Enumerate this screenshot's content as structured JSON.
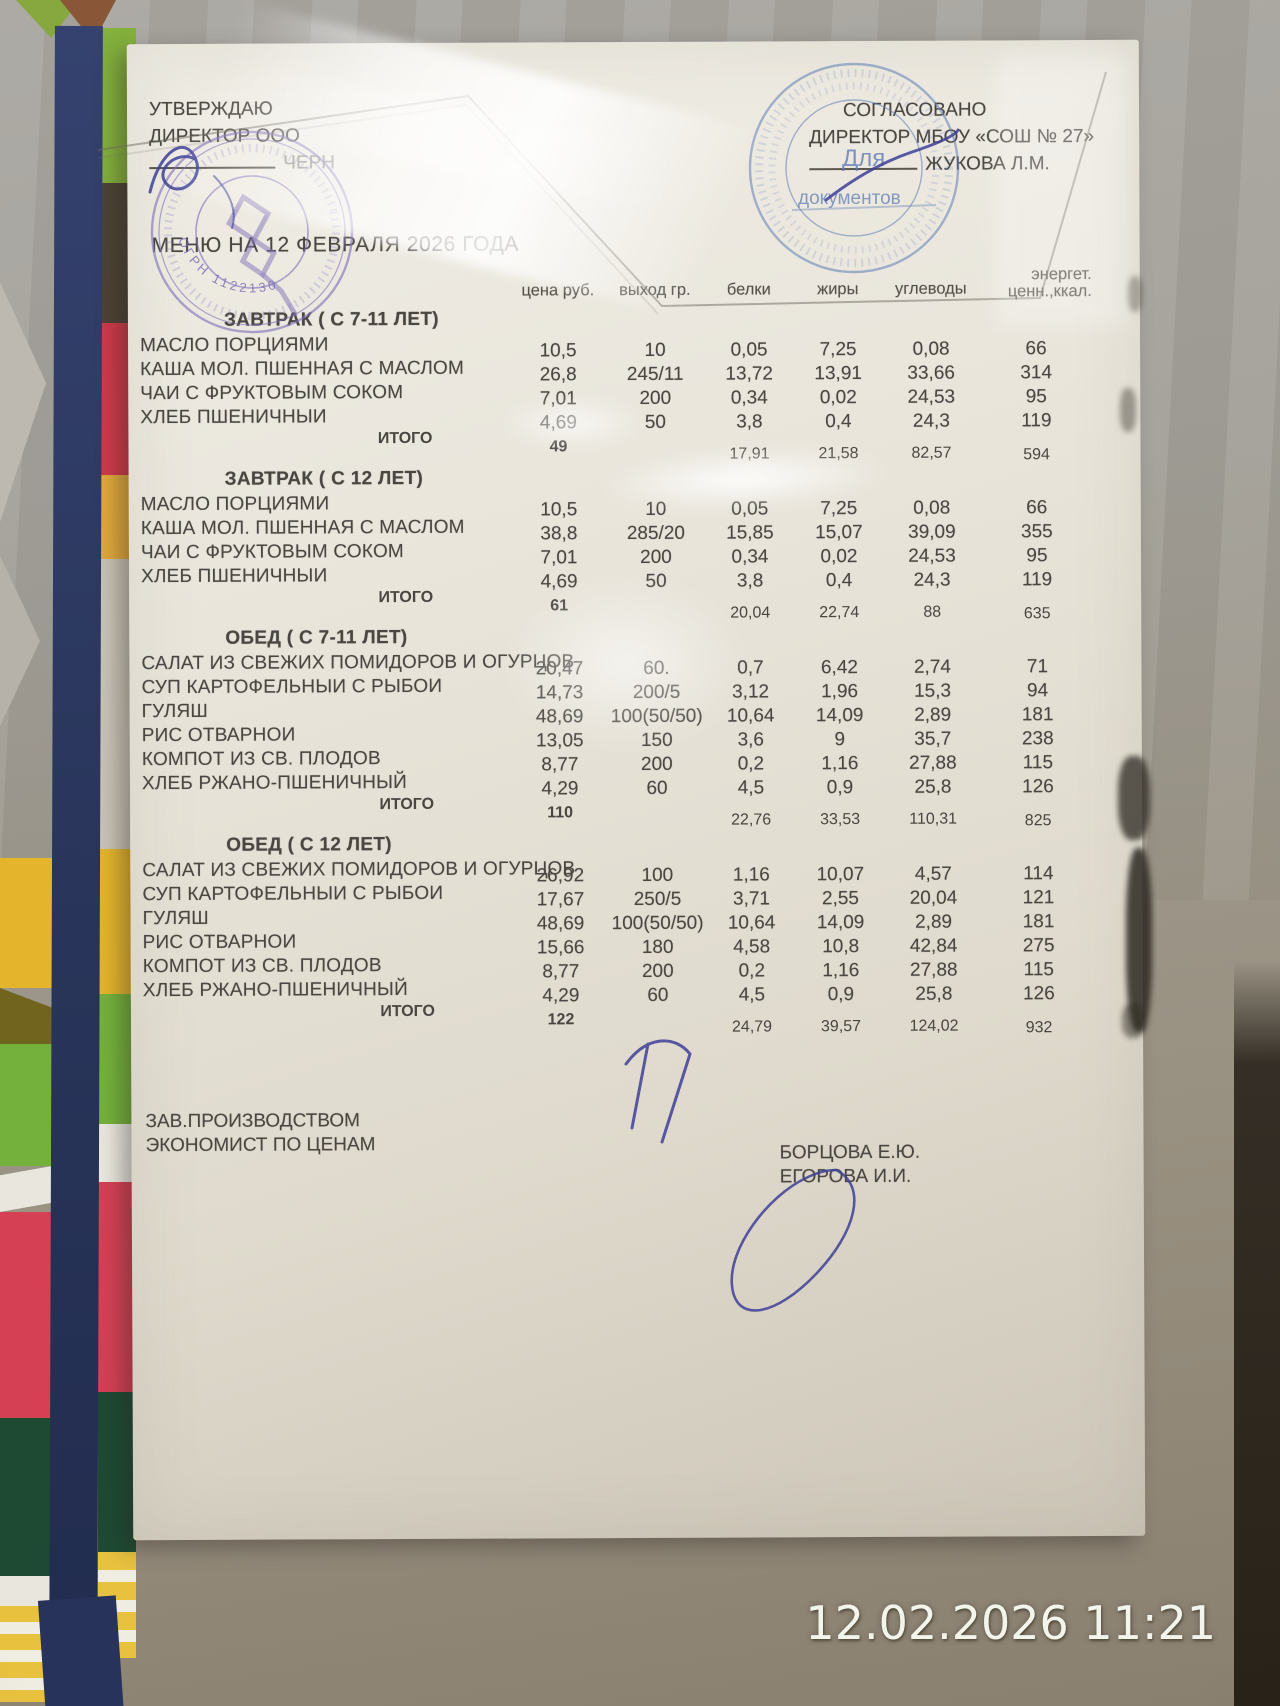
{
  "photo": {
    "camera_timestamp": "12.02.2026 11:21"
  },
  "doc": {
    "approved": {
      "line1": "УТВЕРЖДАЮ",
      "line2": "ДИРЕКТОР ООО",
      "line3": "ЧЕРН"
    },
    "agreed": {
      "line1": "СОГЛАСОВАНО",
      "line2": "ДИРЕКТОР МБОУ «СОШ № 27»",
      "line3": "ЖУКОВА Л.М."
    },
    "stamps": {
      "left_fragment": "ОГРН 1122130",
      "right_line1": "Для",
      "right_line2": "документов"
    },
    "title": "МЕНЮ НА 12 ФЕВРАЛЯ  2026   ГОДА",
    "footer_roles": {
      "line1": "ЗАВ.ПРОИЗВОДСТВОМ",
      "line2": "ЭКОНОМИСТ ПО ЦЕНАМ"
    },
    "footer_names": {
      "line1": "БОРЦОВА Е.Ю.",
      "line2": "ЕГОРОВА И.И."
    }
  },
  "table": {
    "columns": [
      "цена руб.",
      "выход гр.",
      "белки",
      "жиры",
      "углеводы"
    ],
    "last_column": {
      "line1": "энергет.",
      "line2": "ценн.,ккал."
    },
    "sections": [
      {
        "title": "ЗАВТРАК ( С 7-11 ЛЕТ)",
        "rows": [
          {
            "name": "МАСЛО ПОРЦИЯМИ",
            "price": "10,5",
            "out": "10",
            "protein": "0,05",
            "fat": "7,25",
            "carbs": "0,08",
            "kcal": "66"
          },
          {
            "name": "КАША МОЛ. ПШЕННАЯ С МАСЛОМ",
            "price": "26,8",
            "out": "245/11",
            "protein": "13,72",
            "fat": "13,91",
            "carbs": "33,66",
            "kcal": "314"
          },
          {
            "name": "ЧАИ С ФРУКТОВЫМ СОКОМ",
            "price": "7,01",
            "out": "200",
            "protein": "0,34",
            "fat": "0,02",
            "carbs": "24,53",
            "kcal": "95"
          },
          {
            "name": "ХЛЕБ ПШЕНИЧНЫИ",
            "price": "4,69",
            "out": "50",
            "protein": "3,8",
            "fat": "0,4",
            "carbs": "24,3",
            "kcal": "119"
          }
        ],
        "totals": {
          "label": "ИТОГО",
          "price": "49",
          "protein": "17,91",
          "fat": "21,58",
          "carbs": "82,57",
          "kcal": "594"
        }
      },
      {
        "title": "ЗАВТРАК ( С 12 ЛЕТ)",
        "rows": [
          {
            "name": "МАСЛО ПОРЦИЯМИ",
            "price": "10,5",
            "out": "10",
            "protein": "0,05",
            "fat": "7,25",
            "carbs": "0,08",
            "kcal": "66"
          },
          {
            "name": "КАША МОЛ. ПШЕННАЯ С МАСЛОМ",
            "price": "38,8",
            "out": "285/20",
            "protein": "15,85",
            "fat": "15,07",
            "carbs": "39,09",
            "kcal": "355"
          },
          {
            "name": "ЧАИ С ФРУКТОВЫМ СОКОМ",
            "price": "7,01",
            "out": "200",
            "protein": "0,34",
            "fat": "0,02",
            "carbs": "24,53",
            "kcal": "95"
          },
          {
            "name": "ХЛЕБ ПШЕНИЧНЫИ",
            "price": "4,69",
            "out": "50",
            "protein": "3,8",
            "fat": "0,4",
            "carbs": "24,3",
            "kcal": "119"
          }
        ],
        "totals": {
          "label": "ИТОГО",
          "price": "61",
          "protein": "20,04",
          "fat": "22,74",
          "carbs": "88",
          "kcal": "635"
        }
      },
      {
        "title": "ОБЕД ( С 7-11 ЛЕТ)",
        "rows": [
          {
            "name": "САЛАТ ИЗ СВЕЖИХ ПОМИДОРОВ И ОГУРЦОВ",
            "price": "20,47",
            "out": "60.",
            "protein": "0,7",
            "fat": "6,42",
            "carbs": "2,74",
            "kcal": "71"
          },
          {
            "name": "СУП КАРТОФЕЛЬНЫИ С РЫБОИ",
            "price": "14,73",
            "out": "200/5",
            "protein": "3,12",
            "fat": "1,96",
            "carbs": "15,3",
            "kcal": "94"
          },
          {
            "name": "ГУЛЯШ",
            "price": "48,69",
            "out": "100(50/50)",
            "protein": "10,64",
            "fat": "14,09",
            "carbs": "2,89",
            "kcal": "181"
          },
          {
            "name": "РИС ОТВАРНОИ",
            "price": "13,05",
            "out": "150",
            "protein": "3,6",
            "fat": "9",
            "carbs": "35,7",
            "kcal": "238"
          },
          {
            "name": "КОМПОТ ИЗ СВ. ПЛОДОВ",
            "price": "8,77",
            "out": "200",
            "protein": "0,2",
            "fat": "1,16",
            "carbs": "27,88",
            "kcal": "115"
          },
          {
            "name": "ХЛЕБ РЖАНО-ПШЕНИЧНЫЙ",
            "price": "4,29",
            "out": "60",
            "protein": "4,5",
            "fat": "0,9",
            "carbs": "25,8",
            "kcal": "126"
          }
        ],
        "totals": {
          "label": "ИТОГО",
          "price": "110",
          "protein": "22,76",
          "fat": "33,53",
          "carbs": "110,31",
          "kcal": "825"
        }
      },
      {
        "title": "ОБЕД ( С 12 ЛЕТ)",
        "rows": [
          {
            "name": "САЛАТ ИЗ СВЕЖИХ ПОМИДОРОВ И ОГУРЦОВ",
            "price": "26,92",
            "out": "100",
            "protein": "1,16",
            "fat": "10,07",
            "carbs": "4,57",
            "kcal": "114"
          },
          {
            "name": "СУП КАРТОФЕЛЬНЫИ С РЫБОИ",
            "price": "17,67",
            "out": "250/5",
            "protein": "3,71",
            "fat": "2,55",
            "carbs": "20,04",
            "kcal": "121"
          },
          {
            "name": "ГУЛЯШ",
            "price": "48,69",
            "out": "100(50/50)",
            "protein": "10,64",
            "fat": "14,09",
            "carbs": "2,89",
            "kcal": "181"
          },
          {
            "name": "РИС ОТВАРНОИ",
            "price": "15,66",
            "out": "180",
            "protein": "4,58",
            "fat": "10,8",
            "carbs": "42,84",
            "kcal": "275"
          },
          {
            "name": "КОМПОТ ИЗ СВ. ПЛОДОВ",
            "price": "8,77",
            "out": "200",
            "protein": "0,2",
            "fat": "1,16",
            "carbs": "27,88",
            "kcal": "115"
          },
          {
            "name": "ХЛЕБ РЖАНО-ПШЕНИЧНЫЙ",
            "price": "4,29",
            "out": "60",
            "protein": "4,5",
            "fat": "0,9",
            "carbs": "25,8",
            "kcal": "126"
          }
        ],
        "totals": {
          "label": "ИТОГО",
          "price": "122",
          "protein": "24,79",
          "fat": "39,57",
          "carbs": "124,02",
          "kcal": "932"
        }
      }
    ]
  },
  "colors": {
    "holder_navy": "#2b3864",
    "ink_blue": "#3e3f98",
    "stamp_violet": "#8071b8",
    "stamp_blue": "#5f7db4"
  }
}
